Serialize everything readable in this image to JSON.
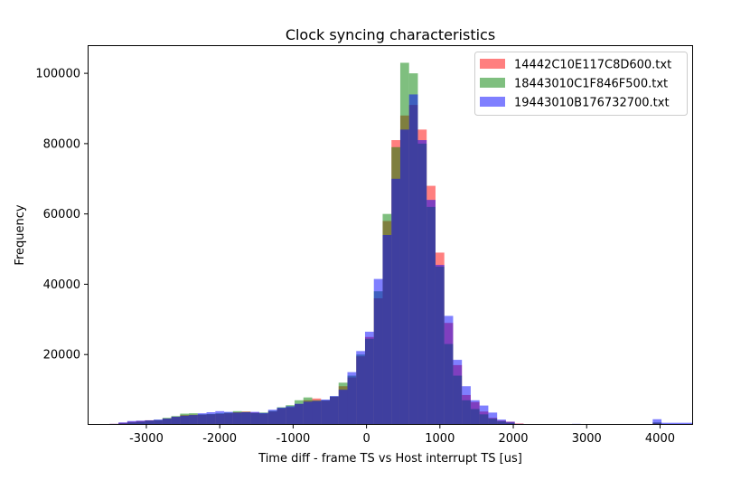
{
  "chart_data": {
    "type": "bar",
    "subtype": "overlapping-histogram",
    "title": "Clock syncing characteristics",
    "xlabel": "Time diff - frame TS vs Host interrupt TS [us]",
    "ylabel": "Frequency",
    "xlim": [
      -3800,
      4450
    ],
    "ylim": [
      0,
      108000
    ],
    "xticks": [
      "-3000",
      "-2000",
      "-1000",
      "0",
      "1000",
      "2000",
      "3000",
      "4000"
    ],
    "xtick_values": [
      -3000,
      -2000,
      -1000,
      0,
      1000,
      2000,
      3000,
      4000
    ],
    "yticks": [
      "20000",
      "40000",
      "60000",
      "80000",
      "100000"
    ],
    "ytick_values": [
      20000,
      40000,
      60000,
      80000,
      100000
    ],
    "legend_position": "top-right",
    "alpha": 0.5,
    "series": [
      {
        "name": "14442C10E117C8D600.txt",
        "color": "#ff0000",
        "bins": [
          [
            -3500,
            -3380,
            300
          ],
          [
            -3380,
            -3260,
            600
          ],
          [
            -3260,
            -3140,
            900
          ],
          [
            -3140,
            -3020,
            1100
          ],
          [
            -3020,
            -2900,
            1300
          ],
          [
            -2900,
            -2780,
            1300
          ],
          [
            -2780,
            -2660,
            1800
          ],
          [
            -2660,
            -2540,
            2300
          ],
          [
            -2540,
            -2420,
            2800
          ],
          [
            -2420,
            -2300,
            2900
          ],
          [
            -2300,
            -2180,
            2900
          ],
          [
            -2180,
            -2060,
            3000
          ],
          [
            -2060,
            -1940,
            3100
          ],
          [
            -1940,
            -1820,
            3300
          ],
          [
            -1820,
            -1700,
            3600
          ],
          [
            -1700,
            -1580,
            3800
          ],
          [
            -1580,
            -1460,
            3500
          ],
          [
            -1460,
            -1340,
            3200
          ],
          [
            -1340,
            -1220,
            3800
          ],
          [
            -1220,
            -1100,
            4700
          ],
          [
            -1100,
            -980,
            5000
          ],
          [
            -980,
            -860,
            5900
          ],
          [
            -860,
            -740,
            7000
          ],
          [
            -740,
            -620,
            7500
          ],
          [
            -620,
            -500,
            6900
          ],
          [
            -500,
            -380,
            8000
          ],
          [
            -380,
            -260,
            11000
          ],
          [
            -260,
            -140,
            13500
          ],
          [
            -140,
            -20,
            19500
          ],
          [
            -20,
            100,
            25000
          ],
          [
            100,
            220,
            36000
          ],
          [
            220,
            340,
            58000
          ],
          [
            340,
            460,
            81000
          ],
          [
            460,
            580,
            88000
          ],
          [
            580,
            700,
            91000
          ],
          [
            700,
            820,
            84000
          ],
          [
            820,
            940,
            68000
          ],
          [
            940,
            1060,
            49000
          ],
          [
            1060,
            1180,
            29000
          ],
          [
            1180,
            1300,
            17000
          ],
          [
            1300,
            1420,
            8500
          ],
          [
            1420,
            1540,
            6500
          ],
          [
            1540,
            1660,
            3800
          ],
          [
            1660,
            1780,
            2000
          ],
          [
            1780,
            1900,
            1200
          ],
          [
            1900,
            2020,
            900
          ],
          [
            2020,
            2140,
            400
          ],
          [
            2800,
            2920,
            200
          ],
          [
            3900,
            4020,
            600
          ]
        ]
      },
      {
        "name": "18443010C1F846F500.txt",
        "color": "#008000",
        "bins": [
          [
            -3500,
            -3380,
            200
          ],
          [
            -3380,
            -3260,
            400
          ],
          [
            -3260,
            -3140,
            700
          ],
          [
            -3140,
            -3020,
            900
          ],
          [
            -3020,
            -2900,
            1200
          ],
          [
            -2900,
            -2780,
            1400
          ],
          [
            -2780,
            -2660,
            2000
          ],
          [
            -2660,
            -2540,
            2500
          ],
          [
            -2540,
            -2420,
            3200
          ],
          [
            -2420,
            -2300,
            3300
          ],
          [
            -2300,
            -2180,
            3000
          ],
          [
            -2180,
            -2060,
            3100
          ],
          [
            -2060,
            -1940,
            3300
          ],
          [
            -1940,
            -1820,
            3500
          ],
          [
            -1820,
            -1700,
            3900
          ],
          [
            -1700,
            -1580,
            3700
          ],
          [
            -1580,
            -1460,
            3400
          ],
          [
            -1460,
            -1340,
            3500
          ],
          [
            -1340,
            -1220,
            4000
          ],
          [
            -1220,
            -1100,
            5000
          ],
          [
            -1100,
            -980,
            5600
          ],
          [
            -980,
            -860,
            7000
          ],
          [
            -860,
            -740,
            7800
          ],
          [
            -740,
            -620,
            7000
          ],
          [
            -620,
            -500,
            7000
          ],
          [
            -500,
            -380,
            8100
          ],
          [
            -380,
            -260,
            12000
          ],
          [
            -260,
            -140,
            14000
          ],
          [
            -140,
            -20,
            20000
          ],
          [
            -20,
            100,
            24500
          ],
          [
            100,
            220,
            38000
          ],
          [
            220,
            340,
            60000
          ],
          [
            340,
            460,
            79000
          ],
          [
            460,
            580,
            103000
          ],
          [
            580,
            700,
            100000
          ],
          [
            700,
            820,
            80000
          ],
          [
            820,
            940,
            62000
          ],
          [
            940,
            1060,
            45000
          ],
          [
            1060,
            1180,
            23000
          ],
          [
            1180,
            1300,
            14000
          ],
          [
            1300,
            1420,
            7000
          ],
          [
            1420,
            1540,
            4500
          ],
          [
            1540,
            1660,
            3000
          ],
          [
            1660,
            1780,
            1800
          ],
          [
            1780,
            1900,
            1000
          ],
          [
            1900,
            2020,
            600
          ],
          [
            2800,
            2920,
            150
          ],
          [
            3900,
            4020,
            700
          ]
        ]
      },
      {
        "name": "19443010B176732700.txt",
        "color": "#0000ff",
        "bins": [
          [
            -3500,
            -3380,
            300
          ],
          [
            -3380,
            -3260,
            700
          ],
          [
            -3260,
            -3140,
            1100
          ],
          [
            -3140,
            -3020,
            1200
          ],
          [
            -3020,
            -2900,
            1300
          ],
          [
            -2900,
            -2780,
            1500
          ],
          [
            -2780,
            -2660,
            1800
          ],
          [
            -2660,
            -2540,
            2300
          ],
          [
            -2540,
            -2420,
            2600
          ],
          [
            -2420,
            -2300,
            2800
          ],
          [
            -2300,
            -2180,
            3300
          ],
          [
            -2180,
            -2060,
            3600
          ],
          [
            -2060,
            -1940,
            3900
          ],
          [
            -1940,
            -1820,
            3700
          ],
          [
            -1820,
            -1700,
            3500
          ],
          [
            -1700,
            -1580,
            3600
          ],
          [
            -1580,
            -1460,
            3700
          ],
          [
            -1460,
            -1340,
            3400
          ],
          [
            -1340,
            -1220,
            4300
          ],
          [
            -1220,
            -1100,
            4900
          ],
          [
            -1100,
            -980,
            5300
          ],
          [
            -980,
            -860,
            6000
          ],
          [
            -860,
            -740,
            6600
          ],
          [
            -740,
            -620,
            6800
          ],
          [
            -620,
            -500,
            7200
          ],
          [
            -500,
            -380,
            8200
          ],
          [
            -380,
            -260,
            10000
          ],
          [
            -260,
            -140,
            15000
          ],
          [
            -140,
            -20,
            21000
          ],
          [
            -20,
            100,
            26500
          ],
          [
            100,
            220,
            41500
          ],
          [
            220,
            340,
            54000
          ],
          [
            340,
            460,
            70000
          ],
          [
            460,
            580,
            84000
          ],
          [
            580,
            700,
            94000
          ],
          [
            700,
            820,
            81000
          ],
          [
            820,
            940,
            64000
          ],
          [
            940,
            1060,
            45500
          ],
          [
            1060,
            1180,
            31000
          ],
          [
            1180,
            1300,
            18500
          ],
          [
            1300,
            1420,
            11000
          ],
          [
            1420,
            1540,
            7000
          ],
          [
            1540,
            1660,
            5500
          ],
          [
            1660,
            1780,
            3500
          ],
          [
            1780,
            1900,
            1500
          ],
          [
            1900,
            2020,
            900
          ],
          [
            2020,
            2140,
            300
          ],
          [
            2800,
            2920,
            300
          ],
          [
            3900,
            4020,
            1600
          ],
          [
            4020,
            4450,
            600
          ]
        ]
      }
    ]
  }
}
